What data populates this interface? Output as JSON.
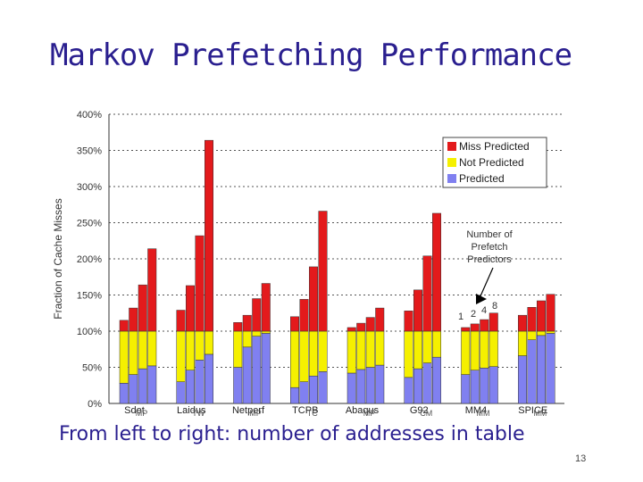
{
  "slide": {
    "title": "Markov Prefetching Performance",
    "caption": "From left to right: number of addresses in table",
    "slide_number": "13"
  },
  "colors": {
    "miss_predicted": "#e31a1c",
    "not_predicted": "#f5f000",
    "predicted": "#8080f0",
    "title": "#2a1f8f"
  },
  "chart_data": {
    "type": "bar",
    "stacked": true,
    "ylabel": "Fraction of Cache Misses",
    "ylim": [
      0,
      400
    ],
    "yticks": [
      "0%",
      "50%",
      "100%",
      "150%",
      "200%",
      "250%",
      "300%",
      "350%",
      "400%"
    ],
    "grid": true,
    "legend_position": "top-right",
    "legend": [
      "Miss Predicted",
      "Not Predicted",
      "Predicted"
    ],
    "annotation": {
      "text_lines": [
        "Number of",
        "Prefetch",
        "Predictors"
      ],
      "bar_labels": [
        "1",
        "2",
        "4",
        "8"
      ]
    },
    "groups": [
      {
        "name": "Sdet",
        "sub": "MP",
        "predicted": [
          28,
          40,
          48,
          52
        ],
        "not_predicted": [
          72,
          60,
          52,
          48
        ],
        "miss_predicted": [
          15,
          32,
          64,
          114
        ]
      },
      {
        "name": "Laidus",
        "sub": "TW",
        "predicted": [
          30,
          46,
          60,
          68
        ],
        "not_predicted": [
          70,
          54,
          40,
          32
        ],
        "miss_predicted": [
          29,
          63,
          132,
          264
        ]
      },
      {
        "name": "Netperf",
        "sub": "MP",
        "predicted": [
          50,
          78,
          93,
          97
        ],
        "not_predicted": [
          50,
          22,
          7,
          3
        ],
        "miss_predicted": [
          12,
          22,
          45,
          66
        ]
      },
      {
        "name": "TCPB",
        "sub": "TC",
        "predicted": [
          22,
          30,
          38,
          44
        ],
        "not_predicted": [
          78,
          70,
          62,
          56
        ],
        "miss_predicted": [
          20,
          44,
          89,
          166
        ]
      },
      {
        "name": "Abaqus",
        "sub": "MP",
        "predicted": [
          42,
          47,
          50,
          53
        ],
        "not_predicted": [
          58,
          53,
          50,
          47
        ],
        "miss_predicted": [
          5,
          11,
          19,
          32
        ]
      },
      {
        "name": "G92",
        "sub": "CM",
        "predicted": [
          36,
          48,
          56,
          64
        ],
        "not_predicted": [
          64,
          52,
          44,
          36
        ],
        "miss_predicted": [
          28,
          57,
          104,
          163
        ]
      },
      {
        "name": "MM4",
        "sub": "MM",
        "predicted": [
          40,
          46,
          49,
          51
        ],
        "not_predicted": [
          60,
          54,
          51,
          49
        ],
        "miss_predicted": [
          5,
          10,
          16,
          25
        ]
      },
      {
        "name": "SPICE",
        "sub": "MM",
        "predicted": [
          66,
          88,
          94,
          97
        ],
        "not_predicted": [
          34,
          12,
          6,
          3
        ],
        "miss_predicted": [
          22,
          33,
          42,
          51
        ]
      }
    ]
  }
}
